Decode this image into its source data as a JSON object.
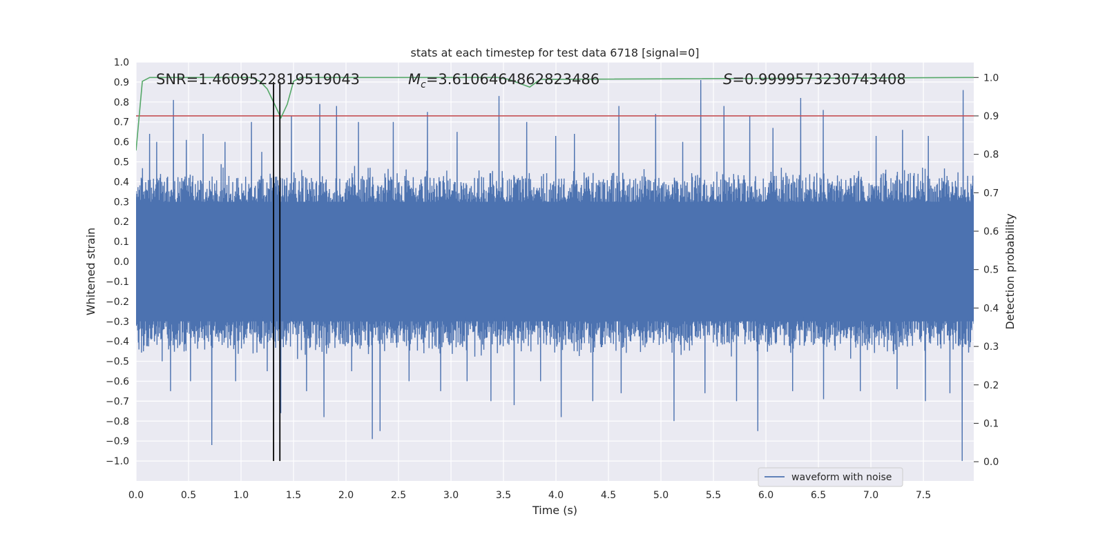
{
  "chart_data": {
    "type": "line",
    "title": "stats at each timestep for test data 6718 [signal=0]",
    "xlabel": "Time (s)",
    "ylabel": "Whitened strain",
    "y2label": "Detection probability",
    "xlim": [
      0,
      7.98
    ],
    "ylim": [
      -1.1,
      1.0
    ],
    "y2lim": [
      -0.05,
      1.04
    ],
    "xticks": [
      "0.0",
      "0.5",
      "1.0",
      "1.5",
      "2.0",
      "2.5",
      "3.0",
      "3.5",
      "4.0",
      "4.5",
      "5.0",
      "5.5",
      "6.0",
      "6.5",
      "7.0",
      "7.5"
    ],
    "yticks": [
      "1.0",
      "0.9",
      "0.8",
      "0.7",
      "0.6",
      "0.5",
      "0.4",
      "0.3",
      "0.2",
      "0.1",
      "0.0",
      "−0.1",
      "−0.2",
      "−0.3",
      "−0.4",
      "−0.5",
      "−0.6",
      "−0.7",
      "−0.8",
      "−0.9",
      "−1.0"
    ],
    "y2ticks": [
      "1.0",
      "0.9",
      "0.8",
      "0.7",
      "0.6",
      "0.5",
      "0.4",
      "0.3",
      "0.2",
      "0.1",
      "0.0"
    ],
    "annotations": {
      "snr": "SNR=1.4609522819519043",
      "mc_symbol": "M",
      "mc_sub": "c",
      "mc_value": "=3.6106464862823486",
      "s_symbol": "S",
      "s_value": "=0.9999573230743408"
    },
    "series": [
      {
        "name": "waveform with noise",
        "color": "#4c72b0",
        "description": "dense noisy whitened strain, envelope roughly -0.45..0.45 with spikes",
        "peaks": [
          [
            0.05,
            0.42
          ],
          [
            0.13,
            0.64
          ],
          [
            0.2,
            0.6
          ],
          [
            0.36,
            0.81
          ],
          [
            0.48,
            0.61
          ],
          [
            0.64,
            0.64
          ],
          [
            0.85,
            0.6
          ],
          [
            1.1,
            0.7
          ],
          [
            1.2,
            0.55
          ],
          [
            1.48,
            0.73
          ],
          [
            1.75,
            0.79
          ],
          [
            1.91,
            0.78
          ],
          [
            2.12,
            0.7
          ],
          [
            2.45,
            0.7
          ],
          [
            2.78,
            0.75
          ],
          [
            3.06,
            0.65
          ],
          [
            3.46,
            0.83
          ],
          [
            3.72,
            0.7
          ],
          [
            4.0,
            0.63
          ],
          [
            4.18,
            0.64
          ],
          [
            4.6,
            0.78
          ],
          [
            4.95,
            0.74
          ],
          [
            5.21,
            0.6
          ],
          [
            5.38,
            0.91
          ],
          [
            5.6,
            0.78
          ],
          [
            5.85,
            0.73
          ],
          [
            6.07,
            0.67
          ],
          [
            6.33,
            0.82
          ],
          [
            6.55,
            0.76
          ],
          [
            7.05,
            0.63
          ],
          [
            7.3,
            0.66
          ],
          [
            7.55,
            0.63
          ],
          [
            7.88,
            0.86
          ]
        ],
        "troughs": [
          [
            0.07,
            -0.45
          ],
          [
            0.25,
            -0.5
          ],
          [
            0.33,
            -0.65
          ],
          [
            0.52,
            -0.6
          ],
          [
            0.72,
            -0.92
          ],
          [
            0.95,
            -0.6
          ],
          [
            1.25,
            -0.55
          ],
          [
            1.38,
            -0.76
          ],
          [
            1.62,
            -0.65
          ],
          [
            1.79,
            -0.78
          ],
          [
            2.05,
            -0.55
          ],
          [
            2.25,
            -0.89
          ],
          [
            2.32,
            -0.85
          ],
          [
            2.6,
            -0.6
          ],
          [
            2.9,
            -0.65
          ],
          [
            3.15,
            -0.6
          ],
          [
            3.38,
            -0.7
          ],
          [
            3.6,
            -0.72
          ],
          [
            3.85,
            -0.6
          ],
          [
            4.05,
            -0.78
          ],
          [
            4.35,
            -0.7
          ],
          [
            4.62,
            -0.66
          ],
          [
            5.12,
            -0.8
          ],
          [
            5.42,
            -0.66
          ],
          [
            5.72,
            -0.7
          ],
          [
            5.92,
            -0.85
          ],
          [
            6.25,
            -0.65
          ],
          [
            6.55,
            -0.69
          ],
          [
            6.9,
            -0.65
          ],
          [
            7.25,
            -0.64
          ],
          [
            7.52,
            -0.7
          ],
          [
            7.75,
            -0.66
          ],
          [
            7.87,
            -1.0
          ]
        ]
      },
      {
        "name": "detection probability",
        "axis": "right",
        "color": "#55a868",
        "x": [
          0.0,
          0.06,
          0.13,
          1.1,
          1.18,
          1.25,
          1.32,
          1.38,
          1.44,
          1.5,
          1.57,
          3.45,
          3.55,
          3.65,
          3.75,
          3.85,
          7.98
        ],
        "values": [
          0.81,
          0.99,
          1.0,
          1.0,
          0.99,
          0.97,
          0.93,
          0.895,
          0.93,
          0.99,
          1.0,
          1.0,
          0.995,
          0.985,
          0.975,
          0.995,
          1.0
        ]
      },
      {
        "name": "threshold",
        "axis": "right",
        "color": "#c44e52",
        "x": [
          0.0,
          7.98
        ],
        "values": [
          0.9,
          0.9
        ]
      }
    ],
    "vlines": {
      "color": "#000000",
      "x": [
        1.31,
        1.37
      ],
      "ymin": -1.0,
      "ymax": 0.9
    },
    "legend": {
      "position": "lower-right",
      "entries": [
        {
          "label": "waveform with noise",
          "color": "#4c72b0"
        }
      ]
    },
    "colors": {
      "background": "#eaeaf2",
      "grid": "#ffffff",
      "text": "#262626"
    }
  }
}
